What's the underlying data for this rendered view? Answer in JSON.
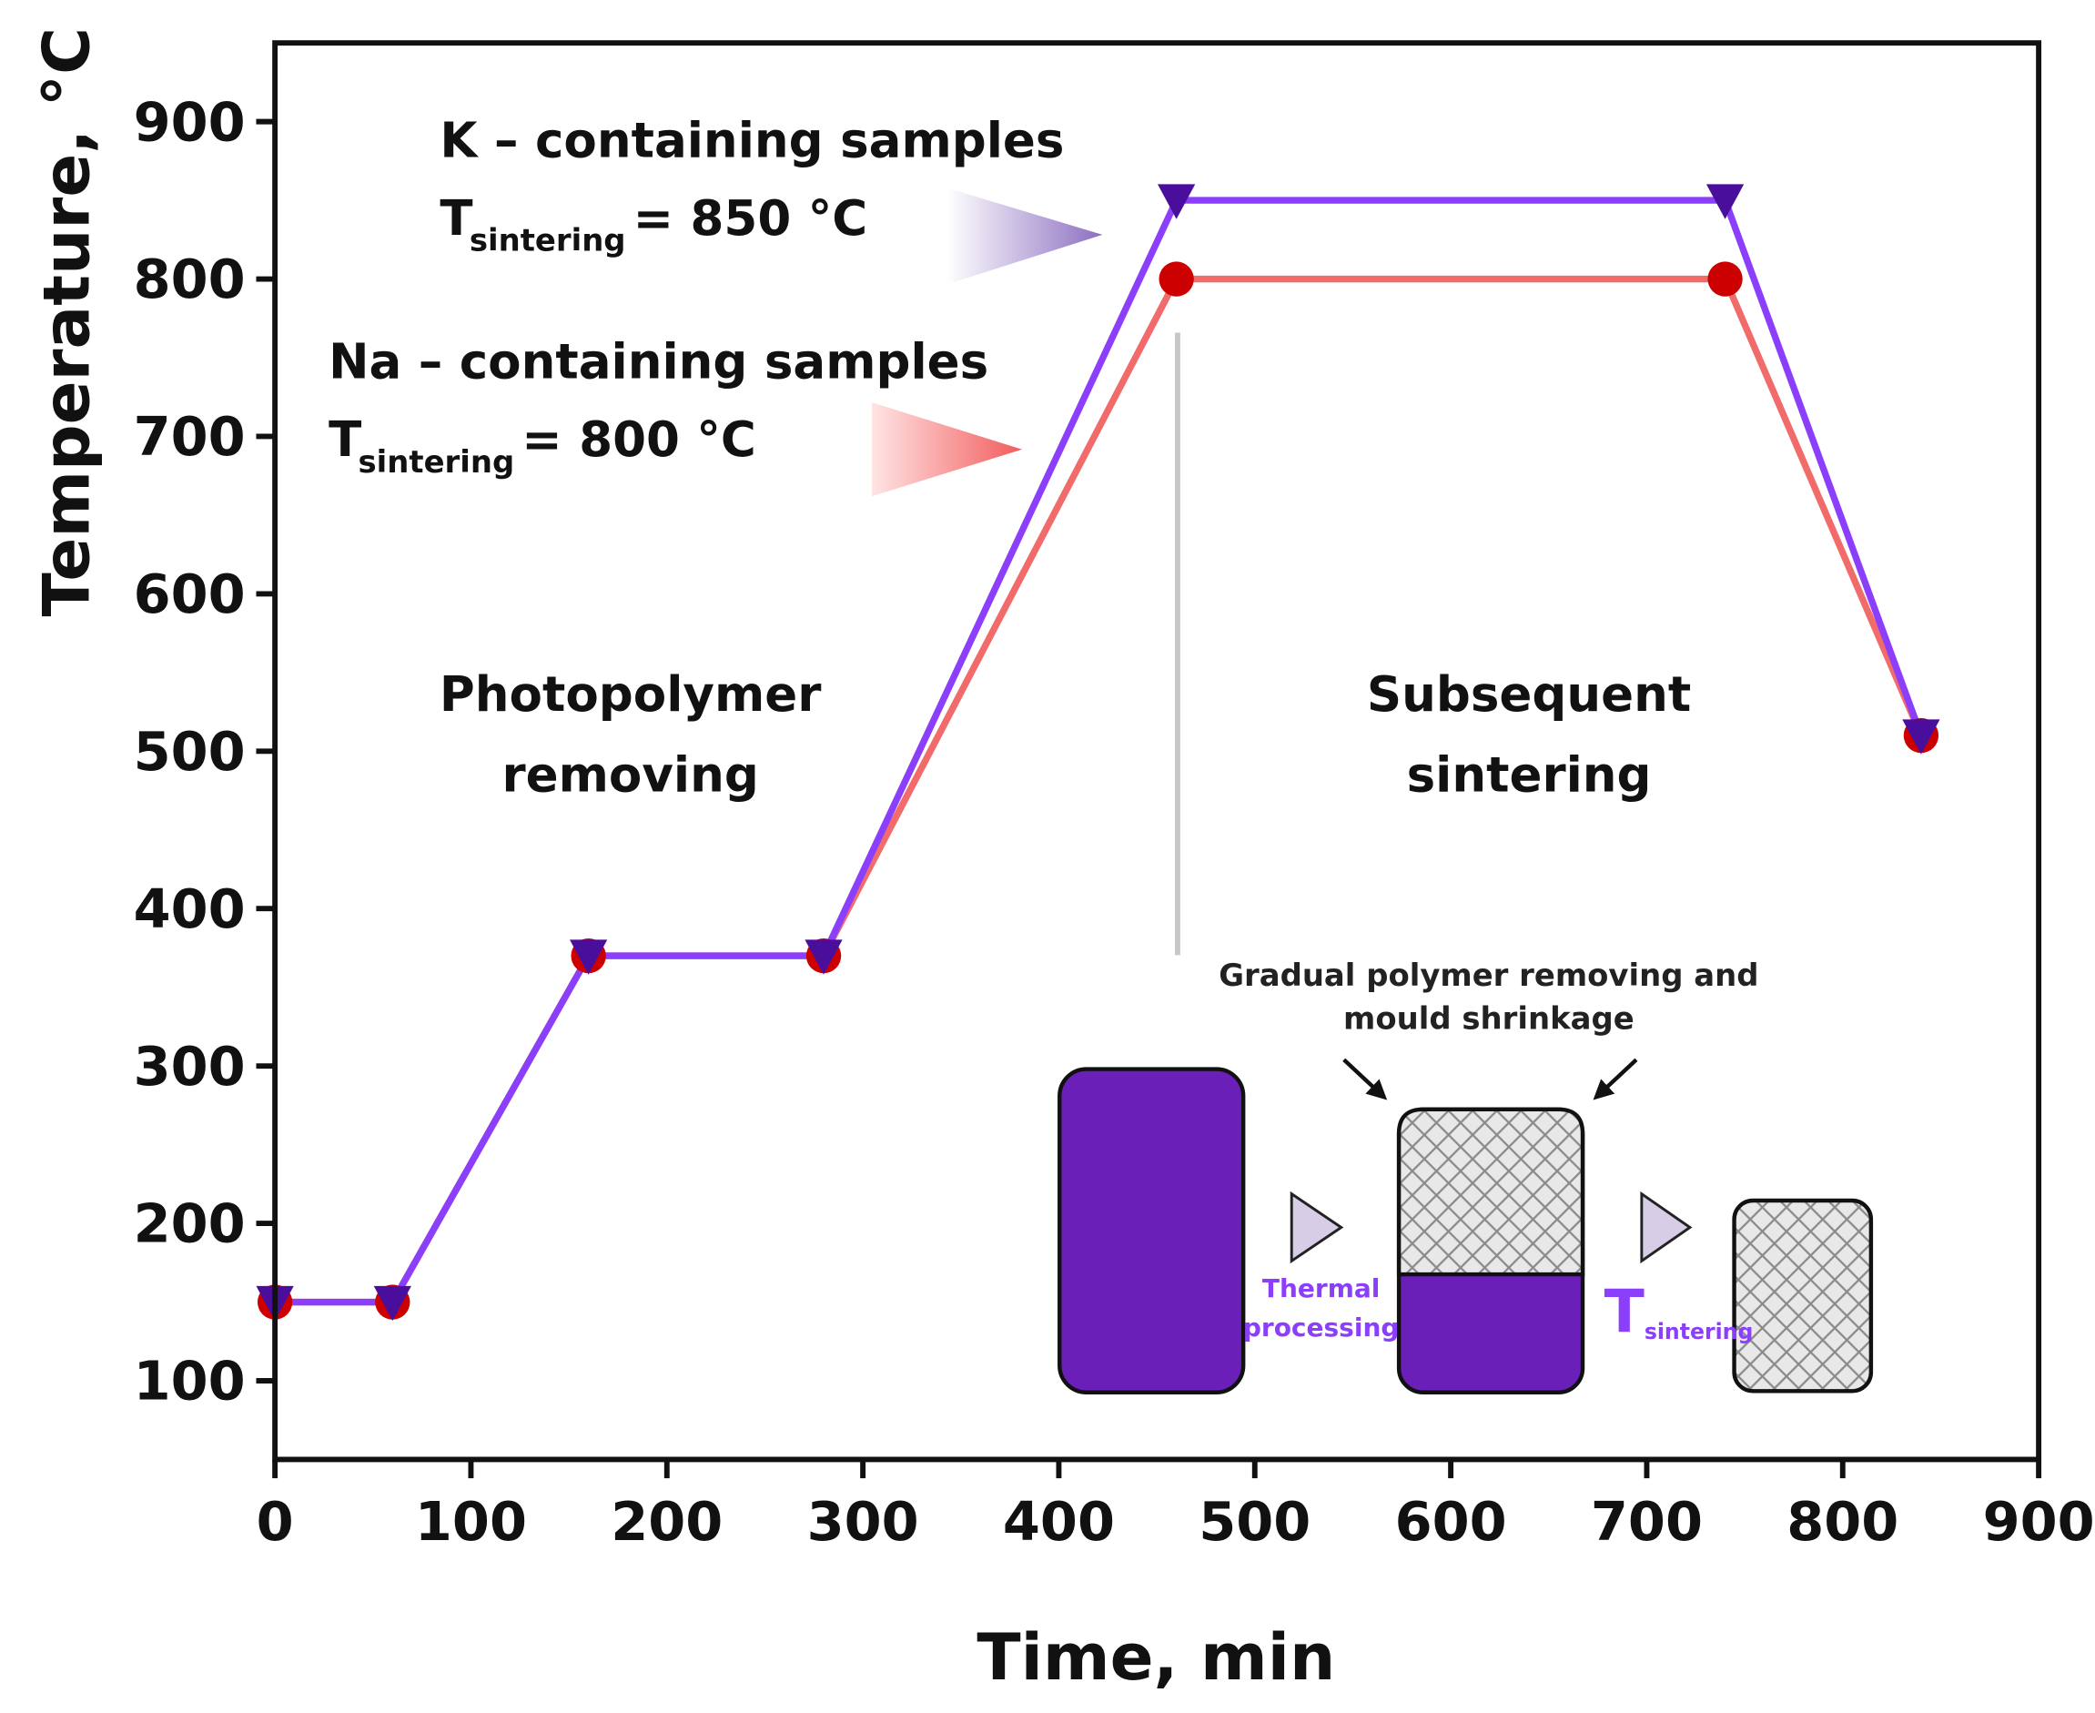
{
  "chart_data": {
    "type": "line",
    "xlabel": "Time, min",
    "ylabel": "Temperature, °C",
    "xlim": [
      0,
      900
    ],
    "ylim": [
      50,
      950
    ],
    "xticks": [
      0,
      100,
      200,
      300,
      400,
      500,
      600,
      700,
      800,
      900
    ],
    "yticks": [
      100,
      200,
      300,
      400,
      500,
      600,
      700,
      800,
      900
    ],
    "x": [
      0,
      60,
      160,
      280,
      460,
      740,
      840
    ],
    "series": [
      {
        "name": "Na – containing samples",
        "color": "#f26b6b",
        "marker_color": "#cc0000",
        "marker": "circle",
        "values": [
          150,
          150,
          370,
          370,
          800,
          800,
          510
        ]
      },
      {
        "name": "K – containing samples",
        "color": "#8b3ffa",
        "marker_color": "#4a0e9c",
        "marker": "triangle",
        "values": [
          150,
          150,
          370,
          370,
          850,
          850,
          510
        ]
      }
    ],
    "sintering_labels": [
      {
        "symbol": "T",
        "subscript": "sintering",
        "text": "= 850 °C"
      },
      {
        "symbol": "T",
        "subscript": "sintering",
        "text": "= 800 °C"
      }
    ],
    "stage_labels": [
      [
        "Photopolymer",
        "removing"
      ],
      [
        "Subsequent",
        "sintering"
      ]
    ],
    "inset": {
      "caption": [
        "Gradual polymer removing and",
        "mould shrinkage"
      ],
      "step1": [
        "Thermal",
        "processing"
      ],
      "step2": {
        "symbol": "T",
        "subscript": "sintering"
      }
    }
  }
}
